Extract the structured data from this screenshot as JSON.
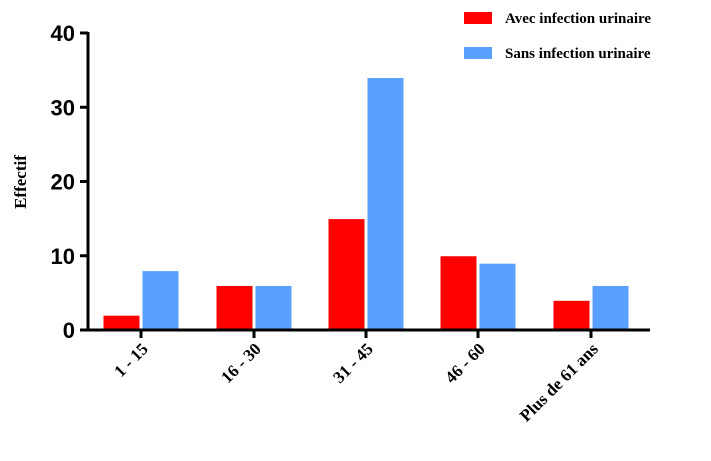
{
  "chart_data": {
    "type": "bar",
    "title": "",
    "xlabel": "",
    "ylabel": "Effectif",
    "ylim": [
      0,
      40
    ],
    "yticks": [
      0,
      10,
      20,
      30,
      40
    ],
    "categories": [
      "1 - 15",
      "16 - 30",
      "31 - 45",
      "46 - 60",
      "Plus de  61 ans"
    ],
    "series": [
      {
        "name": "Avec infection urinaire",
        "color": "#ff0000",
        "values": [
          2,
          6,
          15,
          10,
          4
        ]
      },
      {
        "name": "Sans infection urinaire",
        "color": "#59a0ff",
        "values": [
          8,
          6,
          34,
          9,
          6
        ]
      }
    ],
    "legend_position": "top-right",
    "grid": false
  }
}
